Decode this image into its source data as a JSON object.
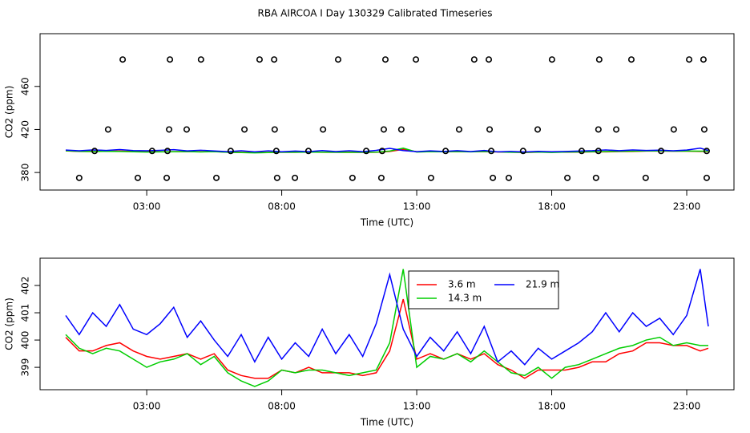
{
  "title": "RBA AIRCOA I  Day 130329  Calibrated Timeseries",
  "chart_data": [
    {
      "type": "scatter",
      "xlabel": "Time (UTC)",
      "ylabel": "CO2 (ppm)",
      "color": "#000000",
      "x": [
        2.11,
        3.86,
        5.01,
        7.18,
        7.72,
        10.09,
        11.84,
        12.97,
        15.13,
        15.67,
        18.01,
        19.76,
        20.95,
        23.09,
        23.62,
        1.57,
        3.83,
        4.48,
        6.62,
        7.74,
        9.53,
        11.78,
        12.43,
        14.57,
        15.7,
        17.48,
        19.73,
        20.39,
        22.52,
        23.65,
        1.07,
        3.2,
        3.77,
        6.11,
        7.8,
        8.99,
        11.13,
        11.72,
        14.07,
        15.76,
        16.94,
        19.11,
        19.73,
        22.05,
        23.74,
        0.5,
        2.67,
        3.74,
        5.58,
        7.83,
        8.49,
        10.62,
        11.69,
        13.53,
        15.82,
        16.41,
        18.58,
        19.64,
        21.48,
        23.74
      ],
      "values": [
        485,
        485,
        485,
        485,
        485,
        485,
        485,
        485,
        485,
        485,
        485,
        485,
        485,
        485,
        485,
        420,
        420,
        420,
        420,
        420,
        420,
        420,
        420,
        420,
        420,
        420,
        420,
        420,
        420,
        420,
        400,
        400,
        400,
        400,
        400,
        400,
        400,
        400,
        400,
        400,
        400,
        400,
        400,
        400,
        400,
        375,
        375,
        375,
        375,
        375,
        375,
        375,
        375,
        375,
        375,
        375,
        375,
        375,
        375,
        375
      ],
      "xlim": [
        -0.95,
        24.75
      ],
      "ylim": [
        363.7,
        509
      ],
      "xticks": [
        {
          "value": 3,
          "label": "03:00"
        },
        {
          "value": 8,
          "label": "08:00"
        },
        {
          "value": 13,
          "label": "13:00"
        },
        {
          "value": 18,
          "label": "18:00"
        },
        {
          "value": 23,
          "label": "23:00"
        }
      ],
      "yticks": [
        380,
        420,
        460
      ]
    },
    {
      "type": "line",
      "xlabel": "Time (UTC)",
      "ylabel": "CO2 (ppm)",
      "x": [
        0,
        0.5,
        1,
        1.5,
        2,
        2.5,
        3,
        3.5,
        4,
        4.5,
        5,
        5.5,
        6,
        6.5,
        7,
        7.5,
        8,
        8.5,
        9,
        9.5,
        10,
        10.5,
        11,
        11.5,
        12,
        12.5,
        13,
        13.5,
        14,
        14.5,
        15,
        15.5,
        16,
        16.5,
        17,
        17.5,
        18,
        18.5,
        19,
        19.5,
        20,
        20.5,
        21,
        21.5,
        22,
        22.5,
        23,
        23.5,
        23.8
      ],
      "series": [
        {
          "name": "3.6 m",
          "color": "#ff0000",
          "values": [
            400.1,
            399.6,
            399.6,
            399.8,
            399.9,
            399.6,
            399.4,
            399.3,
            399.4,
            399.5,
            399.3,
            399.5,
            398.9,
            398.7,
            398.6,
            398.6,
            398.9,
            398.8,
            399.0,
            398.8,
            398.8,
            398.8,
            398.7,
            398.8,
            399.6,
            401.5,
            399.3,
            399.5,
            399.3,
            399.5,
            399.3,
            399.5,
            399.1,
            398.9,
            398.6,
            398.9,
            398.9,
            398.9,
            399.0,
            399.2,
            399.2,
            399.5,
            399.6,
            399.9,
            399.9,
            399.8,
            399.8,
            399.6,
            399.7
          ]
        },
        {
          "name": "14.3 m",
          "color": "#00cd00",
          "values": [
            400.2,
            399.7,
            399.5,
            399.7,
            399.6,
            399.3,
            399.0,
            399.2,
            399.3,
            399.5,
            399.1,
            399.4,
            398.8,
            398.5,
            398.3,
            398.5,
            398.9,
            398.8,
            398.9,
            398.9,
            398.8,
            398.7,
            398.8,
            398.9,
            399.9,
            402.6,
            399.0,
            399.4,
            399.3,
            399.5,
            399.2,
            399.6,
            399.2,
            398.8,
            398.7,
            399.0,
            398.6,
            399.0,
            399.1,
            399.3,
            399.5,
            399.7,
            399.8,
            400.0,
            400.1,
            399.8,
            399.9,
            399.8,
            399.8
          ]
        },
        {
          "name": "21.9 m",
          "color": "#0000ff",
          "values": [
            400.9,
            400.2,
            401.0,
            400.5,
            401.3,
            400.4,
            400.2,
            400.6,
            401.2,
            400.1,
            400.7,
            400.0,
            399.4,
            400.2,
            399.2,
            400.1,
            399.3,
            399.9,
            399.4,
            400.4,
            399.5,
            400.2,
            399.4,
            400.6,
            402.4,
            400.4,
            399.4,
            400.1,
            399.6,
            400.3,
            399.5,
            400.5,
            399.2,
            399.6,
            399.1,
            399.7,
            399.3,
            399.6,
            399.9,
            400.3,
            401.0,
            400.3,
            401.0,
            400.5,
            400.8,
            400.2,
            400.9,
            402.6,
            400.5
          ]
        }
      ],
      "xlim": [
        -0.95,
        24.75
      ],
      "ylim": [
        398.18,
        403.0
      ],
      "xticks": [
        {
          "value": 3,
          "label": "03:00"
        },
        {
          "value": 8,
          "label": "08:00"
        },
        {
          "value": 13,
          "label": "13:00"
        },
        {
          "value": 18,
          "label": "18:00"
        },
        {
          "value": 23,
          "label": "23:00"
        }
      ],
      "yticks": [
        399,
        400,
        401,
        402
      ]
    }
  ]
}
